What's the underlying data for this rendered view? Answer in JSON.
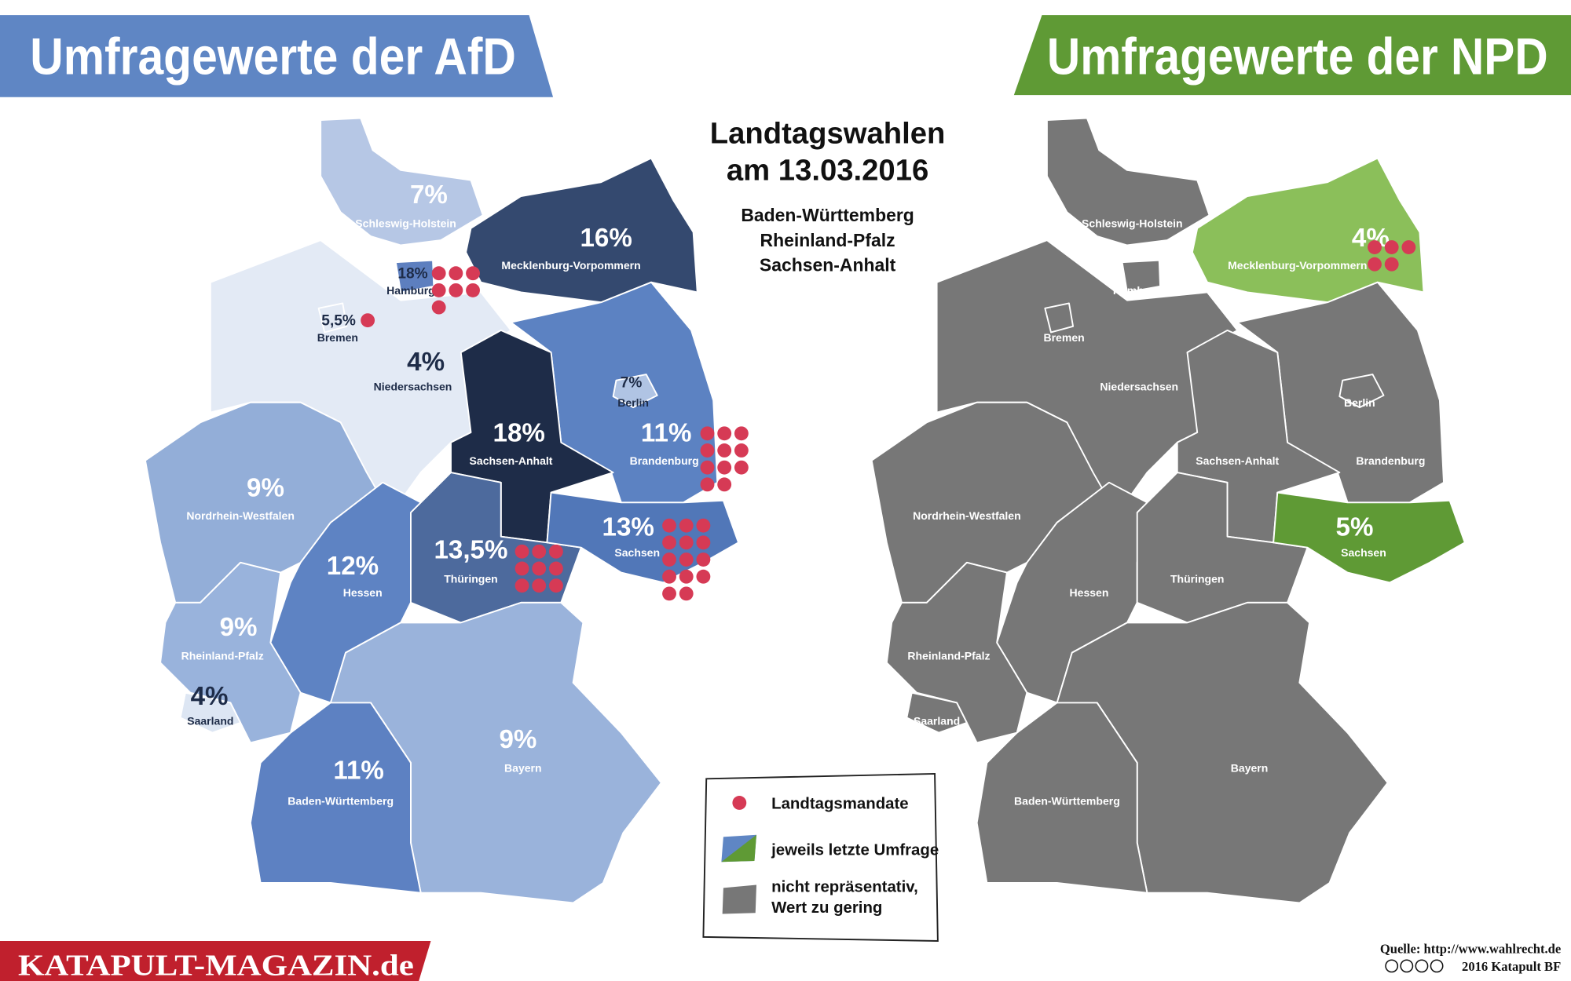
{
  "afd_title": "Umfragewerte der AfD",
  "npd_title": "Umfragewerte der NPD",
  "election": {
    "heading": [
      "Landtagswahlen",
      "am 13.03.2016"
    ],
    "states": [
      "Baden-Württemberg",
      "Rheinland-Pfalz",
      "Sachsen-Anhalt"
    ]
  },
  "states": [
    {
      "name": "Schleswig-Holstein",
      "afd": "7%",
      "afd_color": "#b6c7e5"
    },
    {
      "name": "Mecklenburg-Vorpommern",
      "afd": "16%",
      "afd_color": "#34496f",
      "npd": "4%",
      "npd_color": "#8bbf5a",
      "npd_mandates": 5
    },
    {
      "name": "Niedersachsen",
      "afd": "4%",
      "afd_color": "#e3eaf5"
    },
    {
      "name": "Hamburg",
      "afd": "18%",
      "afd_color": "#5d7fbf",
      "afd_mandates": 7
    },
    {
      "name": "Bremen",
      "afd": "5,5%",
      "afd_color": "#e3eaf5",
      "afd_mandates": 1
    },
    {
      "name": "Brandenburg",
      "afd": "11%",
      "afd_color": "#5c82c2",
      "afd_mandates": 11
    },
    {
      "name": "Berlin",
      "afd": "7%",
      "afd_color": "#b0c4e4"
    },
    {
      "name": "Sachsen-Anhalt",
      "afd": "18%",
      "afd_color": "#1e2c48"
    },
    {
      "name": "Nordrhein-Westfalen",
      "afd": "9%",
      "afd_color": "#93aed8"
    },
    {
      "name": "Hessen",
      "afd": "12%",
      "afd_color": "#5e83c3"
    },
    {
      "name": "Thüringen",
      "afd": "13,5%",
      "afd_color": "#4d6a9d",
      "afd_mandates": 9
    },
    {
      "name": "Sachsen",
      "afd": "13%",
      "afd_color": "#5177b8",
      "afd_mandates": 14,
      "npd": "5%",
      "npd_color": "#5f9a35"
    },
    {
      "name": "Rheinland-Pfalz",
      "afd": "9%",
      "afd_color": "#99b3dc"
    },
    {
      "name": "Saarland",
      "afd": "4%",
      "afd_color": "#dde6f3"
    },
    {
      "name": "Bayern",
      "afd": "9%",
      "afd_color": "#9ab3db"
    },
    {
      "name": "Baden-Württemberg",
      "afd": "11%",
      "afd_color": "#5d81c2"
    }
  ],
  "default_color": "#777777",
  "mandate_color": "#d63a55",
  "legend": {
    "mandates": "Landtagsmandate",
    "latest": "jeweils letzte Umfrage",
    "not_representative": [
      "nicht repräsentativ,",
      "Wert zu gering"
    ]
  },
  "brand": "KATAPULT-MAGAZIN.de",
  "source": "Quelle: http://www.wahlrecht.de",
  "copyright": "2016 Katapult BF"
}
